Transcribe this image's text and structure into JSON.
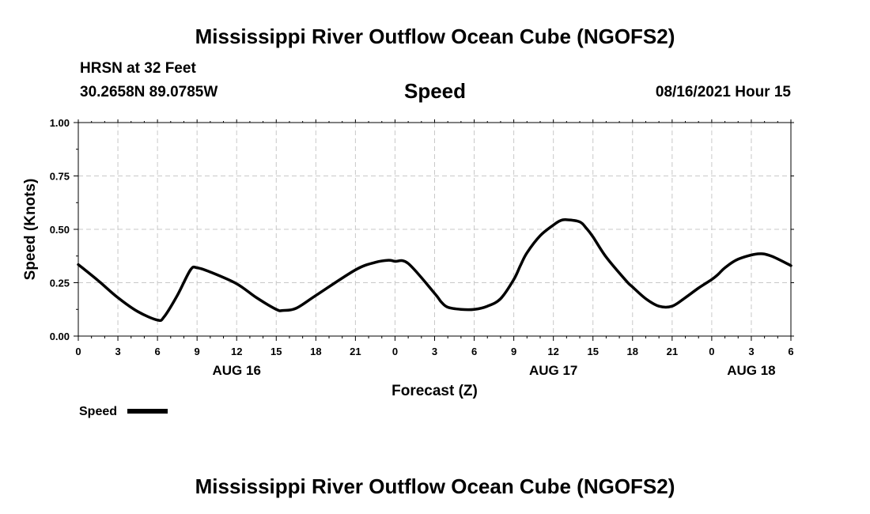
{
  "header": {
    "title": "Mississippi River Outflow Ocean Cube (NGOFS2)",
    "station": "HRSN at 32 Feet",
    "coords": "30.2658N  89.0785W",
    "variable": "Speed",
    "datetime": "08/16/2021 Hour 15"
  },
  "footer": {
    "title": "Mississippi River Outflow Ocean Cube (NGOFS2)"
  },
  "legend": {
    "label": "Speed"
  },
  "chart_data": {
    "type": "line",
    "title": "Speed",
    "xlabel": "Forecast (Z)",
    "ylabel": "Speed (Knots)",
    "xlim": [
      0,
      54
    ],
    "ylim": [
      0,
      1
    ],
    "grid": true,
    "x_tick_labels": [
      "0",
      "3",
      "6",
      "9",
      "12",
      "15",
      "18",
      "21",
      "0",
      "3",
      "6",
      "9",
      "12",
      "15",
      "18",
      "21",
      "0",
      "3",
      "6"
    ],
    "y_tick_labels": [
      "0.00",
      "0.25",
      "0.50",
      "0.75",
      "1.00"
    ],
    "y_ticks": [
      0,
      0.25,
      0.5,
      0.75,
      1.0
    ],
    "date_labels": [
      {
        "label": "AUG 16",
        "x": 12
      },
      {
        "label": "AUG 17",
        "x": 36
      },
      {
        "label": "AUG 18",
        "x": 51
      }
    ],
    "series": [
      {
        "name": "Speed",
        "color": "#000000",
        "x": [
          0,
          1.5,
          3,
          4.5,
          6,
          6.5,
          7.5,
          8.5,
          9,
          10,
          12,
          13.5,
          15,
          15.5,
          16.5,
          18,
          21,
          22.5,
          23.5,
          24,
          25,
          27,
          27.5,
          28,
          29,
          30,
          31,
          32,
          33,
          33.5,
          34,
          35,
          36,
          36.5,
          37,
          38,
          38.5,
          39,
          40,
          41.5,
          42,
          43,
          44,
          45,
          46,
          47,
          48,
          48.5,
          49,
          50,
          51.5,
          52.5,
          54
        ],
        "values": [
          0.335,
          0.26,
          0.18,
          0.115,
          0.075,
          0.09,
          0.19,
          0.31,
          0.32,
          0.3,
          0.245,
          0.18,
          0.125,
          0.12,
          0.13,
          0.19,
          0.31,
          0.345,
          0.355,
          0.35,
          0.34,
          0.2,
          0.16,
          0.135,
          0.125,
          0.125,
          0.14,
          0.175,
          0.265,
          0.33,
          0.39,
          0.47,
          0.52,
          0.54,
          0.545,
          0.535,
          0.505,
          0.465,
          0.37,
          0.26,
          0.23,
          0.175,
          0.14,
          0.14,
          0.18,
          0.225,
          0.265,
          0.29,
          0.32,
          0.36,
          0.385,
          0.375,
          0.33
        ]
      }
    ]
  }
}
